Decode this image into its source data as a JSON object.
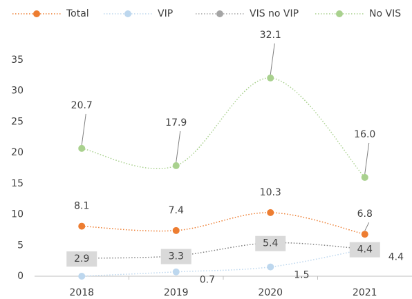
{
  "chart_data": {
    "type": "line",
    "categories": [
      "2018",
      "2019",
      "2020",
      "2021"
    ],
    "series": [
      {
        "name": "Total",
        "color": "#ED7D31",
        "values": [
          8.1,
          7.4,
          10.3,
          6.8
        ],
        "value_labels": [
          "8.1",
          "7.4",
          "10.3",
          "6.8"
        ]
      },
      {
        "name": "VIP",
        "color": "#BDD7EE",
        "values": [
          0,
          0.7,
          1.5,
          4.4
        ],
        "value_labels": [
          null,
          "0.7",
          "1.5",
          "4.4"
        ]
      },
      {
        "name": "VIS no VIP",
        "color": "#A5A5A5",
        "values": [
          2.9,
          3.3,
          5.4,
          4.4
        ],
        "value_labels": [
          "2.9",
          "3.3",
          "5.4",
          "4.4"
        ]
      },
      {
        "name": "No VIS",
        "color": "#A9D18E",
        "values": [
          20.7,
          17.9,
          32.1,
          16.0
        ],
        "value_labels": [
          "20.7",
          "17.9",
          "32.1",
          "16.0"
        ]
      }
    ],
    "ylim": [
      0,
      35
    ],
    "yticks": [
      0,
      5,
      10,
      15,
      20,
      25,
      30,
      35
    ],
    "grid": false,
    "legend": "top"
  }
}
